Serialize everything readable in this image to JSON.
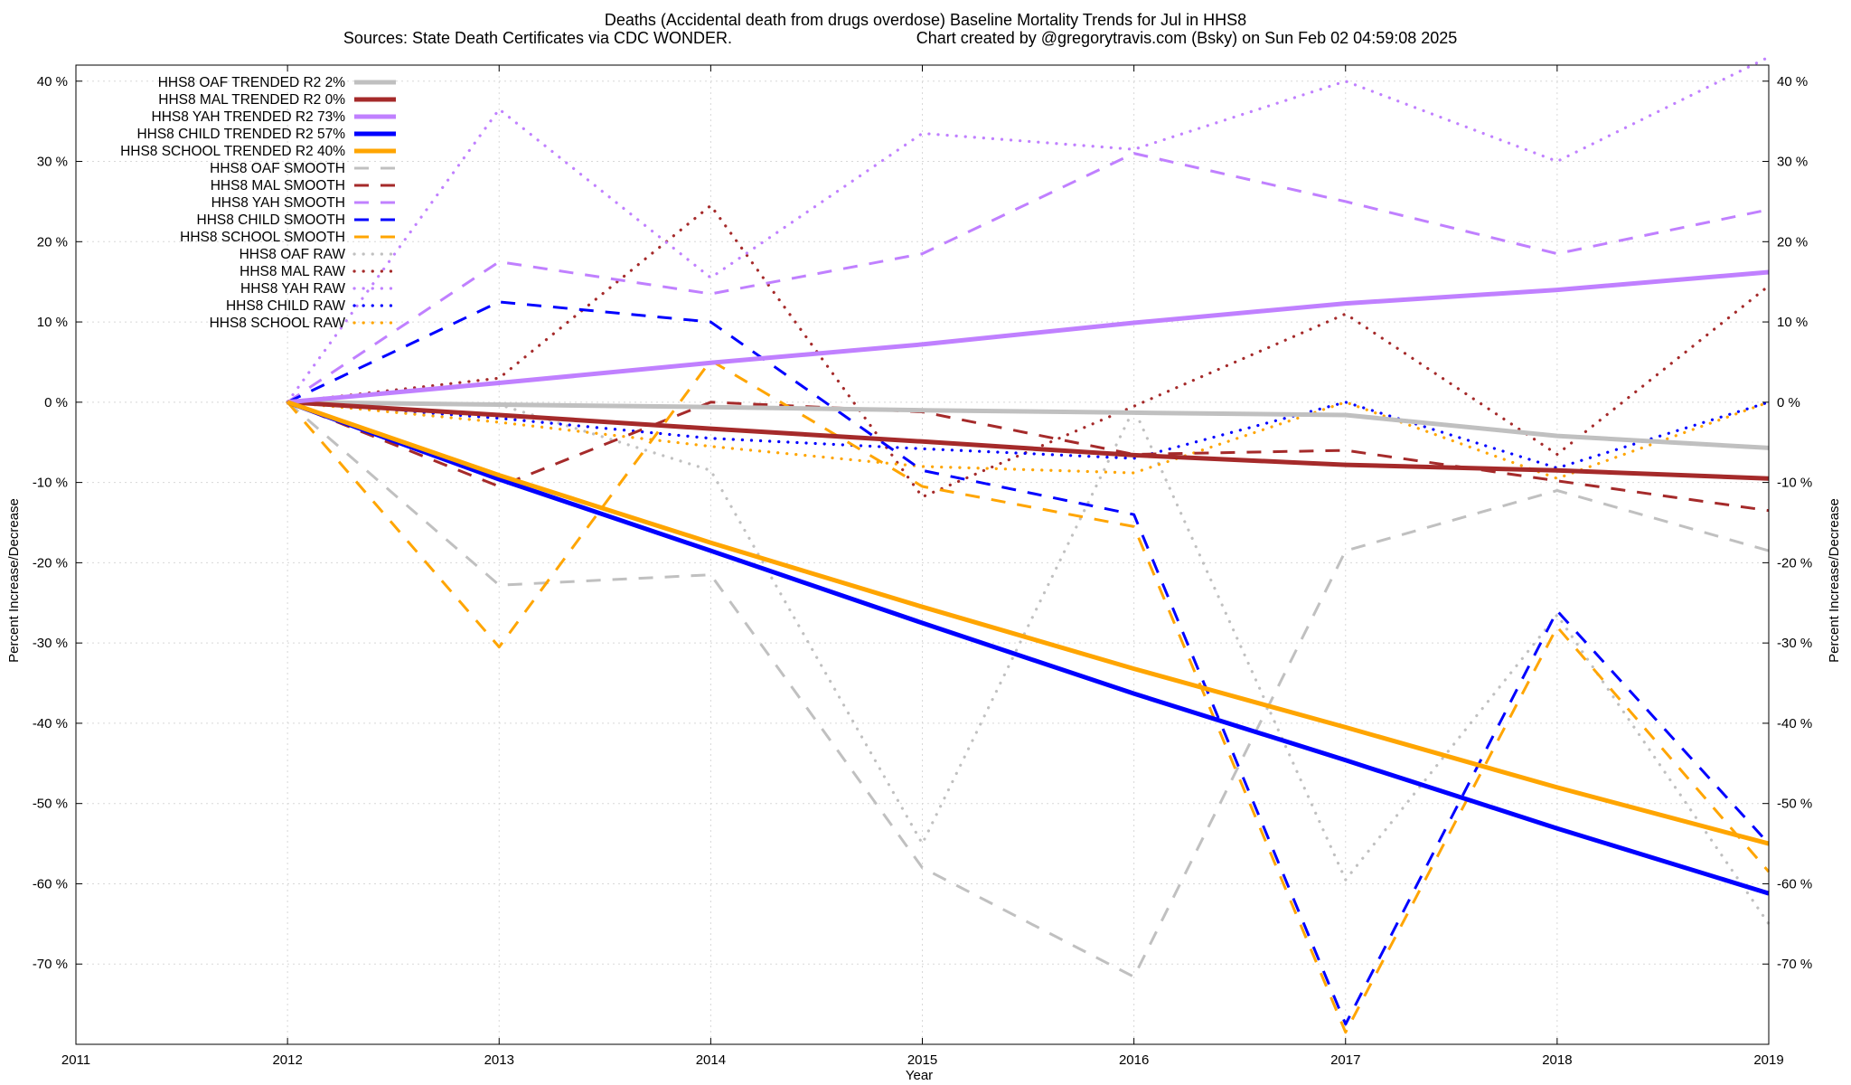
{
  "chart_data": {
    "type": "line",
    "title": "Deaths (Accidental death from drugs overdose)  Baseline Mortality Trends for Jul in HHS8",
    "subtitle_left": "Sources: State Death Certificates via CDC WONDER.",
    "subtitle_right": "Chart created by @gregorytravis.com (Bsky) on Sun Feb 02 04:59:08 2025",
    "xlabel": "Year",
    "ylabel": "Percent Increase/Decrease",
    "ylabel_right": "Percent Increase/Decrease",
    "xlim": [
      2011,
      2019
    ],
    "ylim": [
      -80,
      42
    ],
    "x_ticks": [
      "2011",
      "2012",
      "2013",
      "2014",
      "2015",
      "2016",
      "2017",
      "2018",
      "2019"
    ],
    "y_ticks": [
      "40 %",
      "30 %",
      "20 %",
      "10 %",
      "0 %",
      "-10 %",
      "-20 %",
      "-30 %",
      "-40 %",
      "-50 %",
      "-60 %",
      "-70 %"
    ],
    "grid": true,
    "legend_position": "top-left",
    "x": [
      2012,
      2013,
      2014,
      2015,
      2016,
      2017,
      2018,
      2019
    ],
    "series": [
      {
        "name": "HHS8 OAF TRENDED R2   2%",
        "style": "solid",
        "color": "#c0c0c0",
        "values": [
          0,
          -0.3,
          -0.6,
          -1.0,
          -1.3,
          -1.6,
          -4.2,
          -5.7
        ]
      },
      {
        "name": "HHS8 MAL TRENDED R2   0%",
        "style": "solid",
        "color": "#a52a2a",
        "values": [
          0,
          -1.6,
          -3.3,
          -4.9,
          -6.6,
          -7.8,
          -8.5,
          -9.5
        ]
      },
      {
        "name": "HHS8 YAH TRENDED R2  73%",
        "style": "solid",
        "color": "#c080ff",
        "values": [
          0,
          2.4,
          4.9,
          7.2,
          9.9,
          12.3,
          14.0,
          16.2
        ]
      },
      {
        "name": "HHS8 CHILD TRENDED R2  57%",
        "style": "solid",
        "color": "#0000ff",
        "values": [
          0,
          -9.6,
          -18.5,
          -27.5,
          -36.3,
          -44.6,
          -53.1,
          -61.2
        ]
      },
      {
        "name": "HHS8 SCHOOL TRENDED R2  40%",
        "style": "solid",
        "color": "#ffa500",
        "values": [
          0,
          -9.1,
          -17.5,
          -25.5,
          -33.2,
          -40.5,
          -48.0,
          -55.0
        ]
      },
      {
        "name": "HHS8 OAF SMOOTH",
        "style": "dashed",
        "color": "#c0c0c0",
        "values": [
          0,
          -22.8,
          -21.5,
          -58.0,
          -71.6,
          -18.5,
          -11.0,
          -18.5
        ]
      },
      {
        "name": "HHS8 MAL SMOOTH",
        "style": "dashed",
        "color": "#a52a2a",
        "values": [
          0,
          -10.5,
          0,
          -1.2,
          -6.5,
          -6.0,
          -9.8,
          -13.5
        ]
      },
      {
        "name": "HHS8 YAH SMOOTH",
        "style": "dashed",
        "color": "#c080ff",
        "values": [
          0,
          17.5,
          13.5,
          18.5,
          31.0,
          25.0,
          18.5,
          24.0
        ]
      },
      {
        "name": "HHS8 CHILD SMOOTH",
        "style": "dashed",
        "color": "#0000ff",
        "values": [
          0,
          12.5,
          10.0,
          -8.5,
          -14.0,
          -77.5,
          -26.0,
          -55.0
        ]
      },
      {
        "name": "HHS8 SCHOOL SMOOTH",
        "style": "dashed",
        "color": "#ffa500",
        "values": [
          0,
          -30.5,
          5.2,
          -10.5,
          -15.5,
          -78.5,
          -28.0,
          -58.5
        ]
      },
      {
        "name": "HHS8 OAF RAW",
        "style": "dotted",
        "color": "#c0c0c0",
        "values": [
          0,
          -0.3,
          -8.5,
          -55.0,
          -0.8,
          -59.5,
          -26.5,
          -65.0
        ]
      },
      {
        "name": "HHS8 MAL RAW",
        "style": "dotted",
        "color": "#a52a2a",
        "values": [
          0,
          3.0,
          24.5,
          -11.8,
          -0.5,
          11.0,
          -6.5,
          14.5
        ]
      },
      {
        "name": "HHS8 YAH RAW",
        "style": "dotted",
        "color": "#c080ff",
        "values": [
          0,
          36.5,
          15.5,
          33.5,
          31.5,
          40.0,
          30.0,
          43.0
        ]
      },
      {
        "name": "HHS8 CHILD RAW",
        "style": "dotted",
        "color": "#0000ff",
        "values": [
          0,
          -2.0,
          -4.5,
          -5.8,
          -7.0,
          0,
          -8.2,
          0
        ]
      },
      {
        "name": "HHS8 SCHOOL RAW",
        "style": "dotted",
        "color": "#ffa500",
        "values": [
          0,
          -2.5,
          -5.5,
          -8.0,
          -8.8,
          0,
          -9.5,
          0
        ]
      }
    ]
  }
}
